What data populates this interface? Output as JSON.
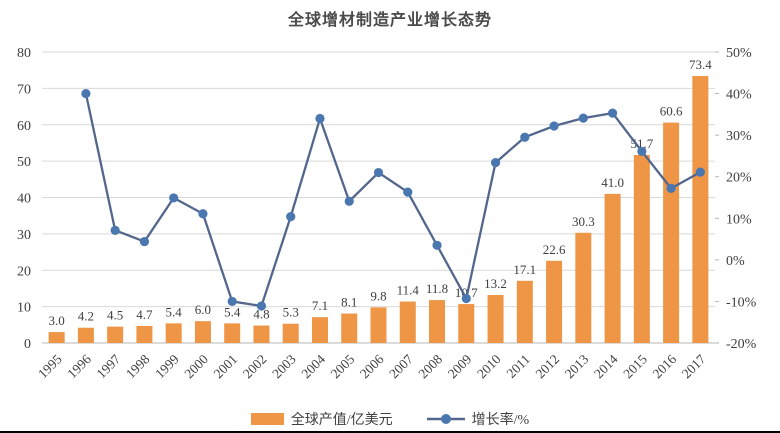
{
  "chart_data": {
    "type": "bar+line",
    "title": "全球增材制造产业增长态势",
    "categories": [
      "1995",
      "1996",
      "1997",
      "1998",
      "1999",
      "2000",
      "2001",
      "2002",
      "2003",
      "2004",
      "2005",
      "2006",
      "2007",
      "2008",
      "2009",
      "2010",
      "2011",
      "2012",
      "2013",
      "2014",
      "2015",
      "2016",
      "2017"
    ],
    "series": [
      {
        "name": "全球产值/亿美元",
        "type": "bar",
        "axis": "left",
        "color": "#EE9546",
        "values": [
          3.0,
          4.2,
          4.5,
          4.7,
          5.4,
          6.0,
          5.4,
          4.8,
          5.3,
          7.1,
          8.1,
          9.8,
          11.4,
          11.8,
          10.7,
          13.2,
          17.1,
          22.6,
          30.3,
          41.0,
          51.7,
          60.6,
          73.4
        ],
        "labels": [
          "3.0",
          "4.2",
          "4.5",
          "4.7",
          "5.4",
          "6.0",
          "5.4",
          "4.8",
          "5.3",
          "7.1",
          "8.1",
          "9.8",
          "11.4",
          "11.8",
          "10.7",
          "13.2",
          "17.1",
          "22.6",
          "30.3",
          "41.0",
          "51.7",
          "60.6",
          "73.4"
        ]
      },
      {
        "name": "增长率/%",
        "type": "line",
        "axis": "right",
        "color": "#53678D",
        "marker_color": "#4A77B0",
        "values": [
          null,
          40.0,
          7.1,
          4.4,
          14.9,
          11.1,
          -10.0,
          -11.1,
          10.4,
          34.0,
          14.1,
          21.0,
          16.3,
          3.5,
          -9.3,
          23.4,
          29.5,
          32.2,
          34.1,
          35.3,
          26.1,
          17.2,
          21.1
        ]
      }
    ],
    "left_axis": {
      "min": 0,
      "max": 80,
      "step": 10,
      "ticks": [
        "0",
        "10",
        "20",
        "30",
        "40",
        "50",
        "60",
        "70",
        "80"
      ]
    },
    "right_axis": {
      "min": -20,
      "max": 50,
      "step": 10,
      "ticks": [
        "50%",
        "40%",
        "30%",
        "20%",
        "10%",
        "0%",
        "-10%",
        "-20%"
      ]
    },
    "grid": "horizontal",
    "grid_color": "#d9d9d9",
    "axis_line_color": "#b7b7b7",
    "legend_position": "bottom"
  }
}
